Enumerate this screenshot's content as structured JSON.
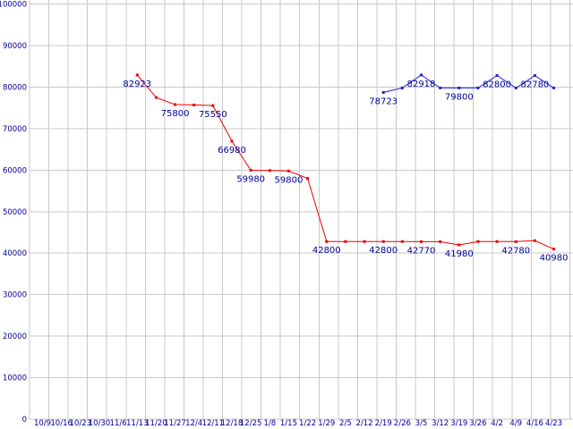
{
  "chart_data": {
    "type": "line",
    "title": "",
    "xlabel": "",
    "ylabel": "",
    "legend": "none",
    "grid": "on",
    "background": "#ffffff",
    "grid_color": "#c8c8c8",
    "label_color": "#000099",
    "ylim": [
      0,
      100000
    ],
    "ytick_step": 10000,
    "ytick_labels": [
      "100000",
      "90000",
      "80000",
      "70000",
      "60000",
      "50000",
      "40000",
      "30000",
      "20000",
      "10000",
      "0"
    ],
    "categories": [
      "10/9",
      "10/16",
      "10/23",
      "10/30",
      "11/6",
      "11/13",
      "11/20",
      "11/27",
      "12/4",
      "12/11",
      "12/18",
      "12/25",
      "1/8",
      "1/15",
      "1/22",
      "1/29",
      "2/5",
      "2/12",
      "2/19",
      "2/26",
      "3/5",
      "3/12",
      "3/19",
      "3/26",
      "4/2",
      "4/9",
      "4/16",
      "4/23"
    ],
    "series": [
      {
        "name": "red-series",
        "color": "#ee0000",
        "values": [
          null,
          null,
          null,
          null,
          null,
          82923,
          77500,
          75800,
          75700,
          75550,
          66980,
          59980,
          59900,
          59800,
          58000,
          42800,
          42800,
          42800,
          42800,
          42800,
          42770,
          42770,
          41980,
          42800,
          42800,
          42780,
          43000,
          40980
        ],
        "point_labels": [
          null,
          null,
          null,
          null,
          null,
          "82923",
          null,
          "75800",
          null,
          "75550",
          "66980",
          "59980",
          null,
          "59800",
          null,
          "42800",
          null,
          null,
          "42800",
          null,
          "42770",
          null,
          "41980",
          null,
          null,
          "42780",
          null,
          "40980"
        ]
      },
      {
        "name": "blue-series",
        "color": "#2222cc",
        "values": [
          null,
          null,
          null,
          null,
          null,
          null,
          null,
          null,
          null,
          null,
          null,
          null,
          null,
          null,
          null,
          null,
          null,
          null,
          78723,
          79800,
          82918,
          79800,
          79800,
          79800,
          82800,
          79800,
          82780,
          79800
        ],
        "point_labels": [
          null,
          null,
          null,
          null,
          null,
          null,
          null,
          null,
          null,
          null,
          null,
          null,
          null,
          null,
          null,
          null,
          null,
          null,
          "78723",
          null,
          "82918",
          null,
          "79800",
          null,
          "82800",
          null,
          "82780",
          null
        ]
      }
    ]
  }
}
